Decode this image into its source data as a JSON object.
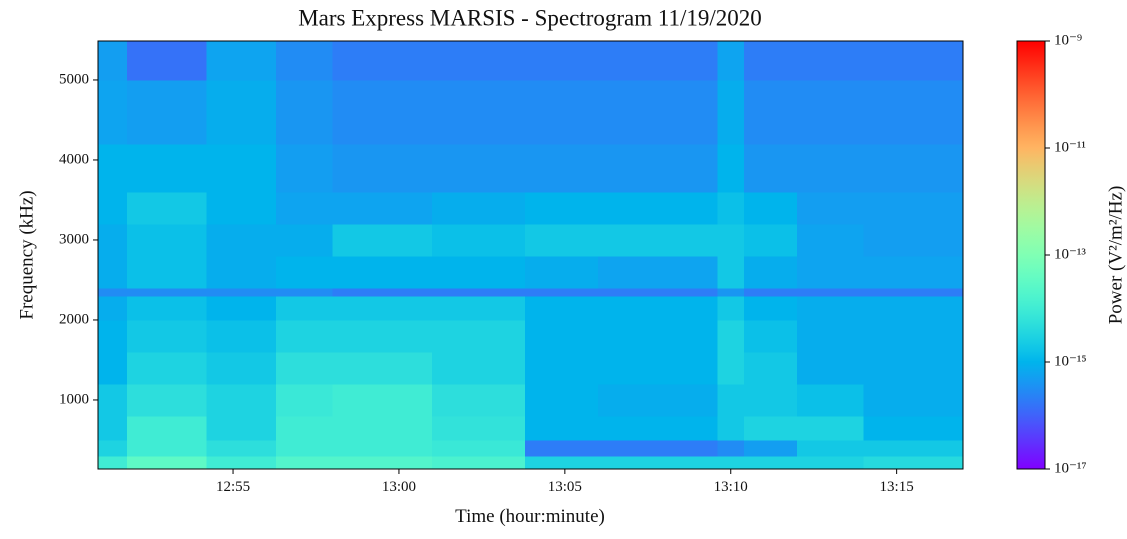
{
  "chart_data": {
    "type": "heatmap",
    "title": "Mars Express MARSIS - Spectrogram 11/19/2020",
    "xlabel": "Time (hour:minute)",
    "ylabel": "Frequency (kHz)",
    "colorbar_label": "Power (V²/m²/Hz)",
    "colormap": "rainbow",
    "color_log_scale": true,
    "xlim": [
      770.93,
      797.0
    ],
    "ylim": [
      137,
      5487
    ],
    "xticks": [
      {
        "value": 775,
        "label": "12:55"
      },
      {
        "value": 780,
        "label": "13:00"
      },
      {
        "value": 785,
        "label": "13:05"
      },
      {
        "value": 790,
        "label": "13:10"
      },
      {
        "value": 795,
        "label": "13:15"
      }
    ],
    "yticks": [
      1000,
      2000,
      3000,
      4000,
      5000
    ],
    "clim": [
      1e-17,
      1e-09
    ],
    "cticks": [
      {
        "value": 1e-17,
        "label": "10⁻¹⁷"
      },
      {
        "value": 1e-15,
        "label": "10⁻¹⁵"
      },
      {
        "value": 1e-13,
        "label": "10⁻¹³"
      },
      {
        "value": 1e-11,
        "label": "10⁻¹¹"
      },
      {
        "value": 1e-09,
        "label": "10⁻⁹"
      }
    ],
    "x_edges": [
      770.93,
      771.8,
      774.2,
      776.3,
      778,
      781,
      783.8,
      786,
      789.6,
      790.4,
      792,
      794,
      797.0
    ],
    "y_edges": [
      137,
      300,
      500,
      800,
      1200,
      1600,
      2000,
      2300,
      2400,
      2800,
      3200,
      3600,
      4200,
      5000,
      5487
    ],
    "z": [
      [
        1e-14,
        3e-15,
        2e-15,
        2e-15,
        1e-15,
        1e-15,
        8e-16,
        3e-16,
        8e-16,
        8e-16,
        1e-15,
        1e-15,
        6e-16,
        5e-16
      ],
      [
        3e-14,
        1e-14,
        1e-14,
        5e-15,
        3e-15,
        2e-15,
        1.5e-15,
        3e-16,
        1.5e-15,
        1.5e-15,
        2e-15,
        1e-15,
        5e-16,
        1.5e-16
      ],
      [
        1e-14,
        5e-15,
        3e-15,
        3e-15,
        2e-15,
        1.5e-15,
        1e-15,
        3e-16,
        8e-16,
        8e-16,
        1e-15,
        1e-15,
        8e-16,
        6e-16
      ],
      [
        2e-14,
        1e-14,
        1e-14,
        8e-15,
        5e-15,
        3e-15,
        2e-15,
        3e-16,
        1e-15,
        8e-16,
        6e-16,
        5e-16,
        4e-16,
        3e-16
      ],
      [
        2e-14,
        1e-14,
        1e-14,
        1e-14,
        5e-15,
        3e-15,
        2e-15,
        2e-16,
        1e-15,
        2e-15,
        6e-16,
        4e-16,
        3e-16,
        2e-16
      ],
      [
        1.5e-14,
        8e-15,
        6e-15,
        5e-15,
        3e-15,
        3e-15,
        2e-15,
        2e-16,
        1e-15,
        1.5e-15,
        8e-16,
        4e-16,
        3e-16,
        2e-16
      ],
      [
        3e-15,
        2e-16,
        1e-15,
        1e-15,
        1e-15,
        1e-15,
        1e-15,
        2e-16,
        8e-16,
        2e-15,
        1e-15,
        4e-16,
        3e-16,
        2e-16
      ],
      [
        3e-15,
        2e-16,
        1e-15,
        8e-16,
        1e-15,
        1e-15,
        1e-15,
        2e-16,
        6e-16,
        2e-15,
        1e-15,
        4e-16,
        3e-16,
        2e-16
      ],
      [
        3e-15,
        3e-16,
        2e-15,
        2e-15,
        3e-15,
        3e-15,
        2e-15,
        4e-16,
        2e-15,
        2e-15,
        1.5e-15,
        1e-15,
        8e-16,
        6e-16
      ],
      [
        3e-15,
        5e-16,
        3e-15,
        2e-15,
        2e-15,
        1.5e-15,
        1e-15,
        2e-16,
        8e-16,
        1.5e-15,
        1e-15,
        4e-16,
        3e-16,
        2e-16
      ],
      [
        3e-15,
        2e-15,
        3e-15,
        1.5e-15,
        8e-16,
        8e-16,
        8e-16,
        2e-16,
        6e-16,
        6e-16,
        5e-16,
        4e-16,
        3e-16,
        2e-16
      ],
      [
        4e-15,
        2e-15,
        1e-15,
        8e-16,
        8e-16,
        8e-16,
        8e-16,
        2e-16,
        6e-16,
        5e-16,
        5e-16,
        4e-16,
        3e-16,
        2e-16
      ]
    ]
  }
}
